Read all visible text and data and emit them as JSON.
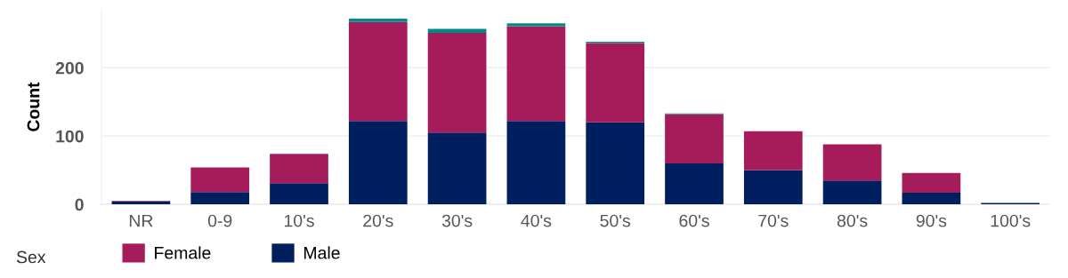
{
  "chart_data": {
    "type": "bar",
    "stacked": true,
    "ylabel": "Count",
    "legend_title": "Sex",
    "categories": [
      "NR",
      "0-9",
      "10's",
      "20's",
      "30's",
      "40's",
      "50's",
      "60's",
      "70's",
      "80's",
      "90's",
      "100's"
    ],
    "series": [
      {
        "name": "Male",
        "color": "#001f5f",
        "values": [
          4,
          18,
          31,
          122,
          105,
          122,
          120,
          60,
          50,
          35,
          17,
          2
        ]
      },
      {
        "name": "Female",
        "color": "#a61c5a",
        "values": [
          1,
          36,
          43,
          145,
          146,
          139,
          116,
          72,
          57,
          53,
          29,
          null
        ]
      },
      {
        "color": "#008b8b",
        "values": [
          null,
          null,
          null,
          5,
          6,
          4,
          2,
          1,
          null,
          null,
          null,
          null
        ]
      }
    ],
    "ylim": [
      0,
      285
    ],
    "yticks": [
      0,
      100,
      200
    ],
    "grid": "y",
    "legend": "bottom left"
  }
}
